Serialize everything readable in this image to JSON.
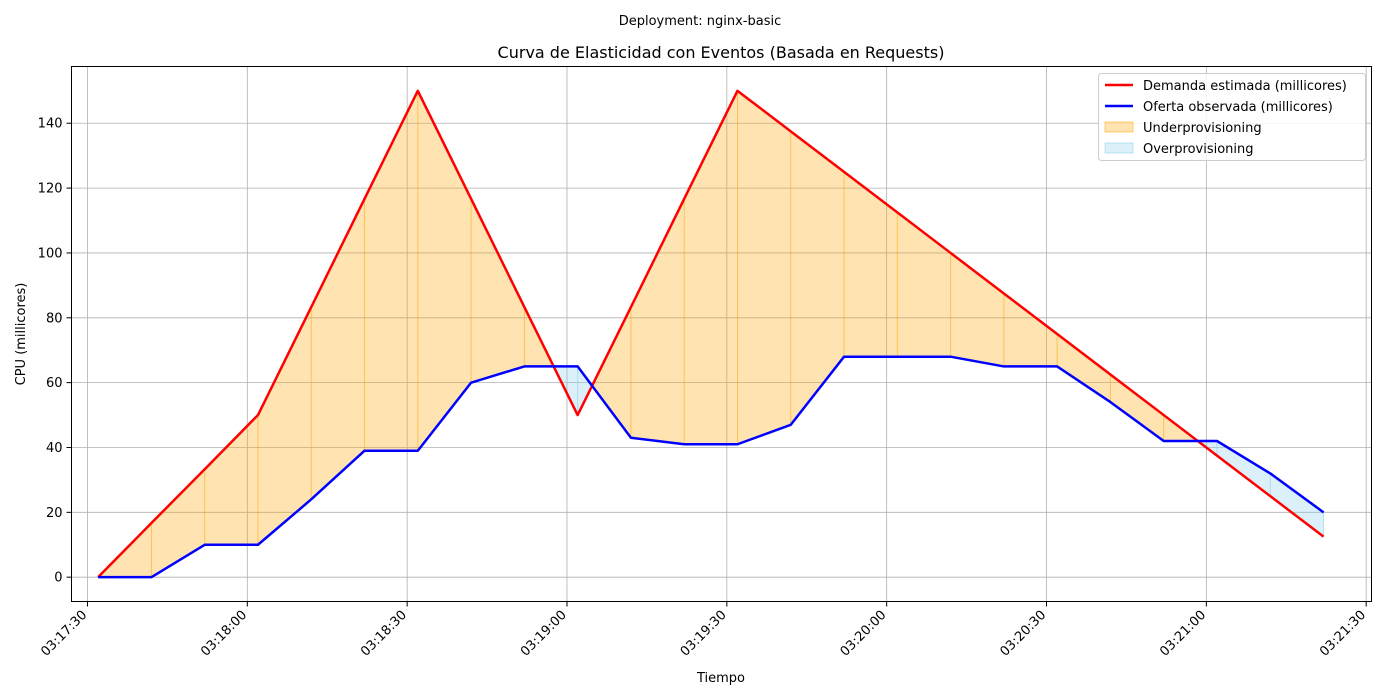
{
  "suptitle": "Deployment: nginx-basic",
  "chart_data": {
    "type": "line",
    "title": "Curva de Elasticidad con Eventos (Basada en Requests)",
    "xlabel": "Tiempo",
    "ylabel": "CPU (millicores)",
    "x_unit": "time (HH:MM:SS)",
    "xlim": [
      "03:17:27",
      "03:21:31"
    ],
    "ylim": [
      -7.5,
      157.5
    ],
    "grid": true,
    "legend_position": "upper right",
    "x_ticks": [
      "03:17:30",
      "03:18:00",
      "03:18:30",
      "03:19:00",
      "03:19:30",
      "03:20:00",
      "03:20:30",
      "03:21:00",
      "03:21:30"
    ],
    "y_ticks": [
      0,
      20,
      40,
      60,
      80,
      100,
      120,
      140
    ],
    "x": [
      "03:17:32",
      "03:17:42",
      "03:17:52",
      "03:18:02",
      "03:18:12",
      "03:18:22",
      "03:18:32",
      "03:18:42",
      "03:18:52",
      "03:19:02",
      "03:19:12",
      "03:19:22",
      "03:19:32",
      "03:19:42",
      "03:19:52",
      "03:20:02",
      "03:20:12",
      "03:20:22",
      "03:20:32",
      "03:20:42",
      "03:20:52",
      "03:21:02",
      "03:21:12",
      "03:21:22"
    ],
    "series": [
      {
        "name": "Demanda estimada (millicores)",
        "color": "#ff0000",
        "values": [
          0,
          16.7,
          33.3,
          50,
          83.3,
          116.7,
          150,
          116.7,
          83.3,
          50,
          83.3,
          116.7,
          150,
          137.5,
          125,
          112.5,
          100,
          87.5,
          75,
          62.5,
          50,
          37.5,
          25,
          12.5
        ]
      },
      {
        "name": "Oferta observada (millicores)",
        "color": "#0000ff",
        "values": [
          0,
          0,
          10,
          10,
          24,
          39,
          39,
          60,
          65,
          65,
          43,
          41,
          41,
          47,
          68,
          68,
          68,
          65,
          65,
          54,
          42,
          42,
          32,
          20
        ]
      }
    ],
    "fills": [
      {
        "name": "Underprovisioning",
        "color": "#ffa500",
        "alpha": 0.3
      },
      {
        "name": "Overprovisioning",
        "color": "#87ceeb",
        "alpha": 0.3
      }
    ]
  }
}
